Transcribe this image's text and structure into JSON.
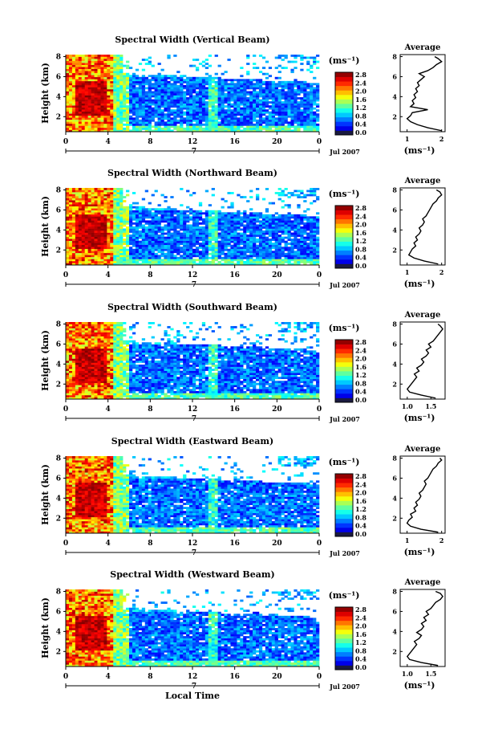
{
  "chart_data": [
    {
      "type": "heatmap",
      "title": "Spectral Width (Vertical Beam)",
      "ylabel": "Height (km)",
      "x_ticks": [
        "0",
        "4",
        "8",
        "12",
        "16",
        "20",
        "0"
      ],
      "x_sublabel": "7",
      "date_label": "Jul 2007",
      "y_ticks": [
        "2",
        "4",
        "6",
        "8"
      ],
      "colorbar": {
        "unit": "(ms⁻¹)",
        "ticks": [
          "0.0",
          "0.4",
          "0.8",
          "1.2",
          "1.6",
          "2.0",
          "2.4",
          "2.8"
        ],
        "range": [
          0,
          2.8
        ]
      },
      "xlim": [
        0,
        24
      ],
      "ylim": [
        0.5,
        8.2
      ],
      "profile": {
        "title": "Average",
        "xlabel": "(ms⁻¹)",
        "x_ticks": [
          "1",
          "2"
        ],
        "xlim": [
          0.8,
          2.1
        ],
        "y_ticks": [
          "2",
          "4",
          "6",
          "8"
        ],
        "heights": [
          0.6,
          0.9,
          1.2,
          1.5,
          1.8,
          2.1,
          2.4,
          2.7,
          3.0,
          3.3,
          3.6,
          3.9,
          4.2,
          4.5,
          4.8,
          5.1,
          5.4,
          5.7,
          6.0,
          6.3,
          6.6,
          6.9,
          7.2,
          7.5,
          7.8,
          8.0
        ],
        "values": [
          2.0,
          1.6,
          1.3,
          1.1,
          1.0,
          1.1,
          1.15,
          1.6,
          1.1,
          1.2,
          1.15,
          1.25,
          1.2,
          1.3,
          1.25,
          1.35,
          1.3,
          1.4,
          1.5,
          1.35,
          1.6,
          1.75,
          1.85,
          2.0,
          1.9,
          1.8
        ]
      }
    },
    {
      "type": "heatmap",
      "title": "Spectral Width (Northward Beam)",
      "ylabel": "Height (km)",
      "x_ticks": [
        "0",
        "4",
        "8",
        "12",
        "16",
        "20",
        "0"
      ],
      "x_sublabel": "7",
      "date_label": "Jul 2007",
      "y_ticks": [
        "2",
        "4",
        "6",
        "8"
      ],
      "colorbar": {
        "unit": "(ms⁻¹)",
        "ticks": [
          "0.0",
          "0.4",
          "0.8",
          "1.2",
          "1.6",
          "2.0",
          "2.4",
          "2.8"
        ],
        "range": [
          0,
          2.8
        ]
      },
      "xlim": [
        0,
        24
      ],
      "ylim": [
        0.5,
        8.2
      ],
      "profile": {
        "title": "Average",
        "xlabel": "(ms⁻¹)",
        "x_ticks": [
          "1",
          "2"
        ],
        "xlim": [
          0.8,
          2.1
        ],
        "y_ticks": [
          "2",
          "4",
          "6",
          "8"
        ],
        "heights": [
          0.6,
          0.9,
          1.2,
          1.5,
          1.8,
          2.1,
          2.4,
          2.7,
          3.0,
          3.3,
          3.6,
          3.9,
          4.2,
          4.5,
          4.8,
          5.1,
          5.4,
          5.7,
          6.0,
          6.3,
          6.6,
          6.9,
          7.2,
          7.5,
          7.8,
          8.0
        ],
        "values": [
          1.9,
          1.5,
          1.2,
          1.05,
          1.1,
          1.15,
          1.25,
          1.2,
          1.3,
          1.25,
          1.35,
          1.4,
          1.35,
          1.45,
          1.5,
          1.45,
          1.55,
          1.6,
          1.65,
          1.7,
          1.75,
          1.85,
          1.9,
          2.0,
          1.95,
          1.85
        ]
      }
    },
    {
      "type": "heatmap",
      "title": "Spectral Width (Southward Beam)",
      "ylabel": "Height (km)",
      "x_ticks": [
        "0",
        "4",
        "8",
        "12",
        "16",
        "20",
        "0"
      ],
      "x_sublabel": "7",
      "date_label": "Jul 2007",
      "y_ticks": [
        "2",
        "4",
        "6",
        "8"
      ],
      "colorbar": {
        "unit": "(ms⁻¹)",
        "ticks": [
          "0.0",
          "0.4",
          "0.8",
          "1.2",
          "1.6",
          "2.0",
          "2.4",
          "2.8"
        ],
        "range": [
          0,
          2.8
        ]
      },
      "xlim": [
        0,
        24
      ],
      "ylim": [
        0.5,
        8.2
      ],
      "profile": {
        "title": "Average",
        "xlabel": "(ms⁻¹)",
        "x_ticks": [
          "1.0",
          "1.5"
        ],
        "xlim": [
          0.85,
          1.8
        ],
        "y_ticks": [
          "2",
          "4",
          "6",
          "8"
        ],
        "heights": [
          0.6,
          0.9,
          1.2,
          1.5,
          1.8,
          2.1,
          2.4,
          2.7,
          3.0,
          3.3,
          3.6,
          3.9,
          4.2,
          4.5,
          4.8,
          5.1,
          5.4,
          5.7,
          6.0,
          6.3,
          6.6,
          6.9,
          7.2,
          7.5,
          7.8,
          8.0
        ],
        "values": [
          1.6,
          1.3,
          1.05,
          1.0,
          1.05,
          1.1,
          1.15,
          1.2,
          1.15,
          1.25,
          1.2,
          1.3,
          1.35,
          1.3,
          1.4,
          1.45,
          1.4,
          1.5,
          1.45,
          1.55,
          1.6,
          1.65,
          1.7,
          1.75,
          1.7,
          1.65
        ]
      }
    },
    {
      "type": "heatmap",
      "title": "Spectral Width (Eastward Beam)",
      "ylabel": "Height (km)",
      "x_ticks": [
        "0",
        "4",
        "8",
        "12",
        "16",
        "20",
        "0"
      ],
      "x_sublabel": "7",
      "date_label": "Jul 2007",
      "y_ticks": [
        "2",
        "4",
        "6",
        "8"
      ],
      "colorbar": {
        "unit": "(ms⁻¹)",
        "ticks": [
          "0.0",
          "0.4",
          "0.8",
          "1.2",
          "1.6",
          "2.0",
          "2.4",
          "2.8"
        ],
        "range": [
          0,
          2.8
        ]
      },
      "xlim": [
        0,
        24
      ],
      "ylim": [
        0.5,
        8.2
      ],
      "profile": {
        "title": "Average",
        "xlabel": "(ms⁻¹)",
        "x_ticks": [
          "1",
          "2"
        ],
        "xlim": [
          0.8,
          2.1
        ],
        "y_ticks": [
          "2",
          "4",
          "6",
          "8"
        ],
        "heights": [
          0.6,
          0.9,
          1.2,
          1.5,
          1.8,
          2.1,
          2.4,
          2.7,
          3.0,
          3.3,
          3.6,
          3.9,
          4.2,
          4.5,
          4.8,
          5.1,
          5.4,
          5.7,
          6.0,
          6.3,
          6.6,
          6.9,
          7.2,
          7.5,
          7.8,
          8.0
        ],
        "values": [
          1.9,
          1.4,
          1.1,
          1.0,
          1.05,
          1.15,
          1.1,
          1.25,
          1.2,
          1.3,
          1.25,
          1.35,
          1.4,
          1.35,
          1.45,
          1.5,
          1.55,
          1.5,
          1.6,
          1.65,
          1.7,
          1.75,
          1.85,
          1.9,
          2.0,
          1.95
        ]
      }
    },
    {
      "type": "heatmap",
      "title": "Spectral Width (Westward Beam)",
      "ylabel": "Height (km)",
      "x_ticks": [
        "0",
        "4",
        "8",
        "12",
        "16",
        "20",
        "0"
      ],
      "x_sublabel": "7",
      "date_label": "Jul 2007",
      "xlabel": "Local Time",
      "y_ticks": [
        "2",
        "4",
        "6",
        "8"
      ],
      "colorbar": {
        "unit": "(ms⁻¹)",
        "ticks": [
          "0.0",
          "0.4",
          "0.8",
          "1.2",
          "1.6",
          "2.0",
          "2.4",
          "2.8"
        ],
        "range": [
          0,
          2.8
        ]
      },
      "xlim": [
        0,
        24
      ],
      "ylim": [
        0.5,
        8.2
      ],
      "profile": {
        "title": "Average",
        "xlabel": "(ms⁻¹)",
        "x_ticks": [
          "1.0",
          "1.5"
        ],
        "xlim": [
          0.85,
          1.8
        ],
        "y_ticks": [
          "2",
          "4",
          "6",
          "8"
        ],
        "heights": [
          0.6,
          0.9,
          1.2,
          1.5,
          1.8,
          2.1,
          2.4,
          2.7,
          3.0,
          3.3,
          3.6,
          3.9,
          4.2,
          4.5,
          4.8,
          5.1,
          5.4,
          5.7,
          6.0,
          6.3,
          6.6,
          6.9,
          7.2,
          7.5,
          7.8,
          8.0
        ],
        "values": [
          1.65,
          1.3,
          1.05,
          1.0,
          1.05,
          1.1,
          1.15,
          1.2,
          1.15,
          1.25,
          1.3,
          1.2,
          1.3,
          1.35,
          1.3,
          1.4,
          1.35,
          1.45,
          1.4,
          1.5,
          1.55,
          1.6,
          1.7,
          1.75,
          1.7,
          1.6
        ]
      }
    }
  ]
}
